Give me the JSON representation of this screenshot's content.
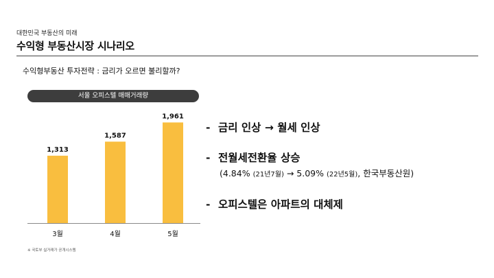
{
  "header": {
    "subtitle": "대한민국 부동산의 미래",
    "title": "수익형 부동산시장 시나리오"
  },
  "section_heading": "수익형부동산 투자전략 : 금리가 오르면 불리할까?",
  "chart_pill_label": "서울 오피스텔 매매거래량",
  "source_note": "※ 국토부 실거래가 공개시스템",
  "bullets": {
    "dash": "-",
    "b1": "금리 인상 → 월세 인상",
    "b2": "전월세전환율 상승",
    "b2_sub": {
      "p1": "(4.84% ",
      "p2": "(21년7월)",
      "p3": " → 5.09% ",
      "p4": "(22년5월)",
      "p5": ", 한국부동산원)"
    },
    "b3": "오피스텔은 아파트의 대체제"
  },
  "colors": {
    "bar": "#F9BE3F",
    "pill": "#3D3D3D",
    "axis": "#888888"
  },
  "chart_data": {
    "type": "bar",
    "title": "서울 오피스텔 매매거래량",
    "categories": [
      "3월",
      "4월",
      "5월"
    ],
    "values": [
      1313,
      1587,
      1961
    ],
    "value_labels": [
      "1,313",
      "1,587",
      "1,961"
    ],
    "ylim": [
      0,
      2100
    ],
    "grid": false,
    "legend": "none"
  }
}
